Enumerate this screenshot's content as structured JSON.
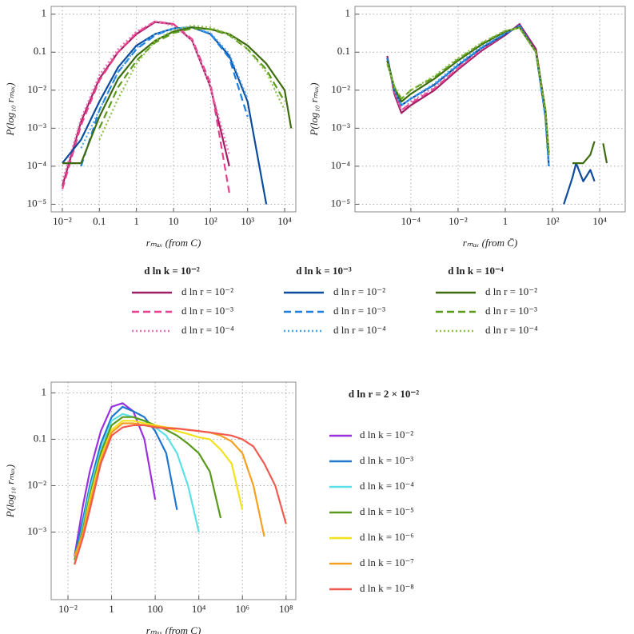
{
  "chart_data": [
    {
      "type": "line",
      "xscale": "log",
      "yscale": "log",
      "grid": true,
      "xlabel": "rₘₐₓ  (from C)",
      "ylabel": "P(log₁₀ rₘₐₓ)",
      "xlim": [
        0.005,
        20000
      ],
      "ylim": [
        6.3e-06,
        1.6
      ],
      "xticks": [
        {
          "value": 0.01,
          "label": "10⁻²"
        },
        0.1,
        1,
        10,
        {
          "value": 100,
          "label": "10²"
        },
        {
          "value": 1000,
          "label": "10³"
        },
        {
          "value": 10000,
          "label": "10⁴"
        }
      ],
      "yticks": [
        {
          "value": 1e-05,
          "label": "10⁻⁵"
        },
        {
          "value": 0.0001,
          "label": "10⁻⁴"
        },
        {
          "value": 0.001,
          "label": "10⁻³"
        },
        {
          "value": 0.01,
          "label": "10⁻²"
        },
        0.1,
        1
      ],
      "legend_titles": [
        "d ln k = 10⁻²",
        "d ln k = 10⁻³",
        "d ln k = 10⁻⁴"
      ],
      "x": [
        0.01,
        0.032,
        0.1,
        0.32,
        1,
        3.2,
        10,
        32,
        100,
        320,
        1000,
        3200,
        10000,
        15000
      ],
      "series": [
        {
          "name": "d ln r = 10⁻²",
          "color": "#9e1f63",
          "dash": "solid",
          "values": [
            3e-05,
            0.0015,
            0.02,
            0.1,
            0.3,
            0.62,
            0.55,
            0.2,
            0.012,
            0.0001,
            null,
            null,
            null,
            null
          ]
        },
        {
          "name": "d ln r = 10⁻³",
          "color": "#ea3f8c",
          "dash": "dashed",
          "values": [
            2.5e-05,
            0.0012,
            0.018,
            0.1,
            0.32,
            0.65,
            0.55,
            0.22,
            0.015,
            2e-05,
            null,
            null,
            null,
            null
          ]
        },
        {
          "name": "d ln r = 10⁻⁴",
          "color": "#e873b2",
          "dash": "dotted",
          "values": [
            4e-05,
            0.0018,
            0.025,
            0.12,
            0.35,
            0.65,
            0.5,
            0.2,
            0.012,
            0.0002,
            null,
            null,
            null,
            null
          ]
        },
        {
          "name": "d ln r = 10⁻²",
          "color": "#0d4c9c",
          "dash": "solid",
          "values": [
            0.00012,
            0.0005,
            0.005,
            0.04,
            0.15,
            0.3,
            0.42,
            0.45,
            0.3,
            0.08,
            0.005,
            1e-05,
            null,
            null
          ]
        },
        {
          "name": "d ln r = 10⁻³",
          "color": "#1a7fe0",
          "dash": "dashed",
          "values": [
            null,
            0.0001,
            0.003,
            0.03,
            0.12,
            0.28,
            0.42,
            0.45,
            0.3,
            0.07,
            0.002,
            null,
            null,
            null
          ]
        },
        {
          "name": "d ln r = 10⁻⁴",
          "color": "#4da3ea",
          "dash": "dotted",
          "values": [
            null,
            0.0003,
            0.003,
            0.03,
            0.13,
            0.3,
            0.42,
            0.45,
            0.32,
            0.09,
            0.006,
            null,
            null,
            null
          ]
        },
        {
          "name": "d ln r = 10⁻²",
          "color": "#3d6b0f",
          "dash": "solid",
          "values": [
            0.00012,
            0.00012,
            0.002,
            0.02,
            0.08,
            0.2,
            0.35,
            0.45,
            0.4,
            0.3,
            0.15,
            0.05,
            0.01,
            0.001
          ]
        },
        {
          "name": "d ln r = 10⁻³",
          "color": "#5a9a1a",
          "dash": "dashed",
          "values": [
            null,
            null,
            0.001,
            0.012,
            0.06,
            0.18,
            0.32,
            0.42,
            0.4,
            0.28,
            0.12,
            0.035,
            0.005,
            null
          ]
        },
        {
          "name": "d ln r = 10⁻⁴",
          "color": "#8fc04a",
          "dash": "dotted",
          "values": [
            null,
            null,
            0.0005,
            0.006,
            0.05,
            0.2,
            0.38,
            0.5,
            0.45,
            0.3,
            0.12,
            0.03,
            0.003,
            null
          ]
        }
      ]
    },
    {
      "type": "line",
      "xscale": "log",
      "yscale": "log",
      "grid": true,
      "xlabel": "rₘₐₓ  (from C̄)",
      "ylabel": "P(log₁₀ rₘₐₓ)",
      "xlim": [
        4.3e-07,
        120000
      ],
      "ylim": [
        6.3e-06,
        1.6
      ],
      "xticks": [
        {
          "value": 0.0001,
          "label": "10⁻⁴"
        },
        {
          "value": 0.01,
          "label": "10⁻²"
        },
        1,
        {
          "value": 100,
          "label": "10²"
        },
        {
          "value": 10000,
          "label": "10⁴"
        }
      ],
      "yticks": [
        {
          "value": 1e-05,
          "label": "10⁻⁵"
        },
        {
          "value": 0.0001,
          "label": "10⁻⁴"
        },
        {
          "value": 0.001,
          "label": "10⁻³"
        },
        {
          "value": 0.01,
          "label": "10⁻²"
        },
        0.1,
        1
      ],
      "x": [
        1e-05,
        2e-05,
        4e-05,
        0.0001,
        0.001,
        0.01,
        0.1,
        1,
        4,
        20,
        50,
        70,
        150,
        300,
        700,
        1000,
        2000,
        4000,
        6000,
        10000,
        14000,
        20000
      ],
      "series": [
        {
          "color": "#9e1f63",
          "dash": "solid",
          "values": [
            0.08,
            0.008,
            0.0025,
            0.004,
            0.01,
            0.035,
            0.11,
            0.28,
            0.55,
            0.12,
            0.003,
            0.0002,
            null,
            null,
            null,
            null,
            null,
            null,
            null,
            null,
            null,
            null
          ]
        },
        {
          "color": "#ea3f8c",
          "dash": "dashed",
          "values": [
            0.07,
            0.009,
            0.003,
            0.0045,
            0.011,
            0.038,
            0.12,
            0.3,
            0.52,
            0.1,
            0.002,
            0.0001,
            null,
            null,
            null,
            null,
            null,
            null,
            null,
            null,
            null,
            null
          ]
        },
        {
          "color": "#e873b2",
          "dash": "dotted",
          "values": [
            0.06,
            0.01,
            0.003,
            0.005,
            0.012,
            0.04,
            0.12,
            0.3,
            0.5,
            0.1,
            0.002,
            0.00015,
            null,
            null,
            null,
            null,
            null,
            null,
            null,
            null,
            null,
            null
          ]
        },
        {
          "color": "#0d4c9c",
          "dash": "solid",
          "values": [
            0.07,
            0.01,
            0.004,
            0.006,
            0.014,
            0.045,
            0.13,
            0.3,
            0.5,
            0.1,
            0.002,
            0.0001,
            null,
            1e-05,
            5e-05,
            0.00012,
            4e-05,
            8e-05,
            4e-05,
            null,
            null,
            null
          ]
        },
        {
          "color": "#1a7fe0",
          "dash": "dashed",
          "values": [
            0.07,
            0.011,
            0.004,
            0.006,
            0.014,
            0.045,
            0.13,
            0.31,
            0.5,
            0.1,
            0.002,
            0.0001,
            null,
            null,
            null,
            null,
            null,
            null,
            null,
            null,
            null,
            null
          ]
        },
        {
          "color": "#4da3ea",
          "dash": "dotted",
          "values": [
            0.06,
            0.01,
            0.004,
            0.006,
            0.015,
            0.05,
            0.14,
            0.32,
            0.48,
            0.1,
            0.002,
            0.0001,
            null,
            null,
            null,
            null,
            null,
            null,
            null,
            null,
            null,
            null
          ]
        },
        {
          "color": "#3d6b0f",
          "dash": "solid",
          "values": [
            0.06,
            0.012,
            0.005,
            0.008,
            0.02,
            0.06,
            0.16,
            0.35,
            0.45,
            0.1,
            0.003,
            0.0002,
            null,
            null,
            0.00012,
            0.00012,
            0.00012,
            0.0002,
            0.00045,
            null,
            0.0004,
            0.00012
          ]
        },
        {
          "color": "#5a9a1a",
          "dash": "dashed",
          "values": [
            0.05,
            0.012,
            0.006,
            0.01,
            0.022,
            0.065,
            0.17,
            0.36,
            0.44,
            0.1,
            0.003,
            0.0002,
            null,
            null,
            null,
            null,
            null,
            null,
            null,
            null,
            null,
            null
          ]
        },
        {
          "color": "#8fc04a",
          "dash": "dotted",
          "values": [
            0.05,
            0.013,
            0.006,
            0.01,
            0.024,
            0.07,
            0.18,
            0.37,
            0.43,
            0.1,
            0.003,
            0.0002,
            null,
            null,
            null,
            null,
            null,
            null,
            null,
            null,
            null,
            null
          ]
        }
      ]
    },
    {
      "type": "line",
      "xscale": "log",
      "yscale": "log",
      "grid": true,
      "xlabel": "rₘₐₓ  (from C)",
      "ylabel": "P(log₁₀ rₘₐₓ)",
      "xlim": [
        0.0017,
        280000000
      ],
      "ylim": [
        3.5e-05,
        1.7
      ],
      "xticks": [
        {
          "value": 0.01,
          "label": "10⁻²"
        },
        1,
        100,
        {
          "value": 10000,
          "label": "10⁴"
        },
        {
          "value": 1000000,
          "label": "10⁶"
        },
        {
          "value": 100000000,
          "label": "10⁸"
        }
      ],
      "yticks": [
        {
          "value": 0.001,
          "label": "10⁻³"
        },
        {
          "value": 0.01,
          "label": "10⁻²"
        },
        0.1,
        1
      ],
      "legend_title": "d ln r = 2 × 10⁻²",
      "x": [
        0.02,
        0.05,
        0.1,
        0.32,
        1,
        3.2,
        10,
        32,
        100,
        320,
        1000,
        3200,
        10000,
        32000,
        100000,
        320000,
        1000000,
        3200000,
        10000000,
        32000000,
        100000000
      ],
      "series": [
        {
          "name": "d ln k = 10⁻²",
          "color": "#9b30e0",
          "dash": "solid",
          "values": [
            0.0003,
            0.004,
            0.02,
            0.15,
            0.5,
            0.6,
            0.4,
            0.1,
            0.005,
            null,
            null,
            null,
            null,
            null,
            null,
            null,
            null,
            null,
            null,
            null,
            null
          ]
        },
        {
          "name": "d ln k = 10⁻³",
          "color": "#1f77d0",
          "dash": "solid",
          "values": [
            0.0003,
            0.002,
            0.01,
            0.08,
            0.3,
            0.5,
            0.4,
            0.3,
            0.15,
            0.05,
            0.003,
            null,
            null,
            null,
            null,
            null,
            null,
            null,
            null,
            null,
            null
          ]
        },
        {
          "name": "d ln k = 10⁻⁴",
          "color": "#5ce0e8",
          "dash": "solid",
          "values": [
            0.0002,
            0.0015,
            0.008,
            0.06,
            0.25,
            0.35,
            0.3,
            0.25,
            0.18,
            0.12,
            0.05,
            0.01,
            0.001,
            null,
            null,
            null,
            null,
            null,
            null,
            null,
            null
          ]
        },
        {
          "name": "d ln k = 10⁻⁵",
          "color": "#5a9a1a",
          "dash": "solid",
          "values": [
            0.00025,
            0.0012,
            0.006,
            0.05,
            0.2,
            0.3,
            0.3,
            0.25,
            0.2,
            0.16,
            0.12,
            0.08,
            0.05,
            0.02,
            0.002,
            null,
            null,
            null,
            null,
            null,
            null
          ]
        },
        {
          "name": "d ln k = 10⁻⁶",
          "color": "#f2e21e",
          "dash": "solid",
          "values": [
            0.0002,
            0.001,
            0.005,
            0.04,
            0.16,
            0.25,
            0.25,
            0.22,
            0.2,
            0.18,
            0.15,
            0.13,
            0.11,
            0.1,
            0.06,
            0.03,
            0.003,
            null,
            null,
            null,
            null
          ]
        },
        {
          "name": "d ln k = 10⁻⁷",
          "color": "#f5a020",
          "dash": "solid",
          "values": [
            0.0003,
            0.001,
            0.004,
            0.035,
            0.14,
            0.22,
            0.22,
            0.2,
            0.19,
            0.18,
            0.17,
            0.16,
            0.15,
            0.14,
            0.12,
            0.09,
            0.05,
            0.01,
            0.0008,
            null,
            null
          ]
        },
        {
          "name": "d ln k = 10⁻⁸",
          "color": "#f25a50",
          "dash": "solid",
          "values": [
            0.0002,
            0.0008,
            0.003,
            0.03,
            0.12,
            0.18,
            0.2,
            0.2,
            0.18,
            0.17,
            0.17,
            0.16,
            0.15,
            0.14,
            0.13,
            0.12,
            0.1,
            0.07,
            0.03,
            0.01,
            0.0015
          ]
        }
      ]
    }
  ]
}
